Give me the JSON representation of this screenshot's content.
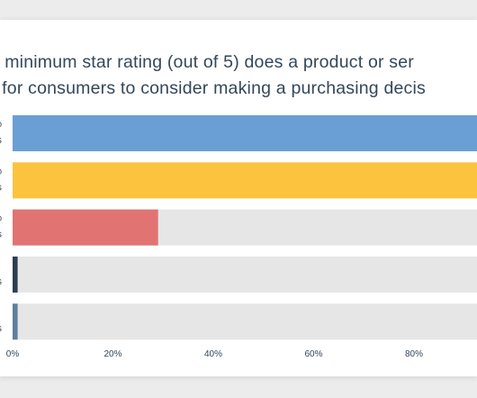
{
  "title_lines": [
    "t minimum star rating (out of 5) does a product or ser",
    "l for consumers to consider making a purchasing decis"
  ],
  "chart_data": {
    "type": "bar",
    "orientation": "horizontal",
    "title": "t minimum star rating (out of 5) does a product or serl for consumers to consider making a purchasing decis",
    "categories": [
      "",
      "",
      "",
      "",
      ""
    ],
    "values": [
      100,
      100,
      29,
      1,
      1
    ],
    "colors": [
      "#6a9fd5",
      "#fcc43e",
      "#e27373",
      "#2d3e50",
      "#5d7f9e"
    ],
    "track_color": "#e6e6e6",
    "xlim": [
      0,
      100
    ],
    "x_ticks": [
      0,
      20,
      40,
      60,
      80
    ],
    "x_tick_labels": [
      "0%",
      "20%",
      "40%",
      "60%",
      "80%"
    ],
    "bar_label_fragments": [
      [
        "%",
        "s"
      ],
      [
        "%",
        "s"
      ],
      [
        "%",
        "s"
      ],
      [
        "",
        "s"
      ],
      [
        "",
        "s"
      ]
    ],
    "grid": false,
    "legend": "none"
  }
}
